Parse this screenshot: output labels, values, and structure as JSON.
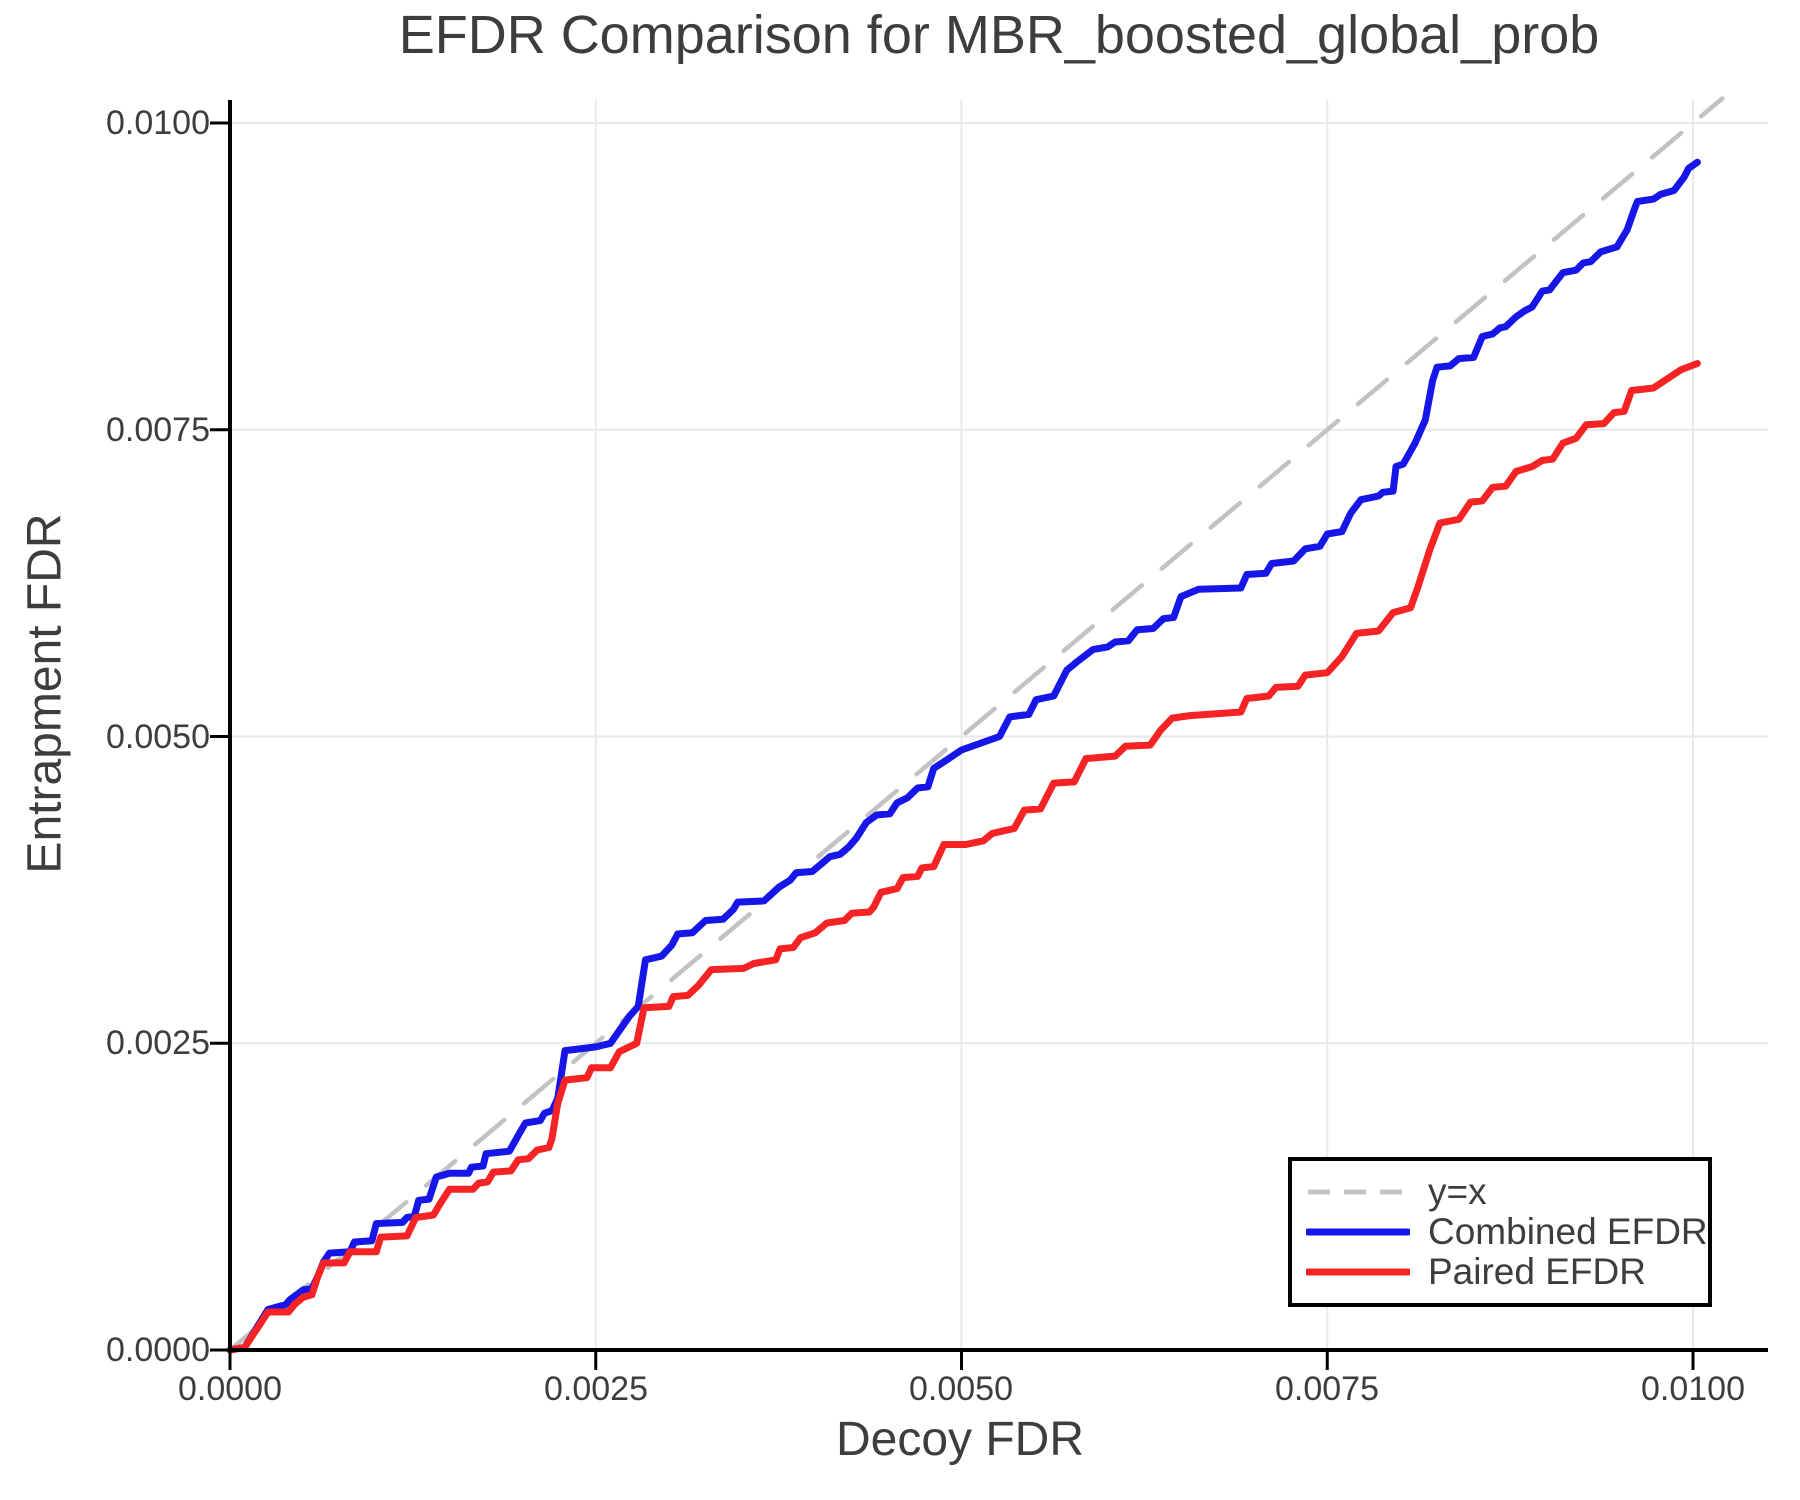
{
  "chart_data": {
    "type": "line",
    "title": "EFDR Comparison for MBR_boosted_global_prob",
    "xlabel": "Decoy FDR",
    "ylabel": "Entrapment FDR",
    "xlim": [
      0.0,
      0.0105
    ],
    "ylim": [
      0.0,
      0.0102
    ],
    "grid": true,
    "legend_position": "bottom-right",
    "xticks": [
      {
        "value": 0.0,
        "label": "0.0000"
      },
      {
        "value": 0.0025,
        "label": "0.0025"
      },
      {
        "value": 0.005,
        "label": "0.0050"
      },
      {
        "value": 0.0075,
        "label": "0.0075"
      },
      {
        "value": 0.01,
        "label": "0.0100"
      }
    ],
    "yticks": [
      {
        "value": 0.0,
        "label": "0.0000"
      },
      {
        "value": 0.0025,
        "label": "0.0025"
      },
      {
        "value": 0.005,
        "label": "0.0050"
      },
      {
        "value": 0.0075,
        "label": "0.0075"
      },
      {
        "value": 0.01,
        "label": "0.0100"
      }
    ],
    "colors": {
      "combined": "#1616e8",
      "paired": "#f52323",
      "identity": "#c2c2c2",
      "grid": "#e9e9e9",
      "text": "#3d3d3d",
      "axis": "#000000"
    },
    "value_scale": 0.001,
    "series": [
      {
        "name": "y=x",
        "style": "dashed",
        "color": "#c2c2c2",
        "width": 4.5,
        "points": [
          [
            0,
            0
          ],
          [
            10.2,
            10.2
          ]
        ]
      },
      {
        "name": "Combined EFDR",
        "style": "solid",
        "color": "#1616e8",
        "width": 7,
        "points": [
          [
            0,
            0
          ],
          [
            0.1,
            0.02
          ],
          [
            0.26,
            0.33
          ],
          [
            0.38,
            0.37
          ],
          [
            0.41,
            0.41
          ],
          [
            0.5,
            0.49
          ],
          [
            0.56,
            0.5
          ],
          [
            0.6,
            0.6
          ],
          [
            0.64,
            0.72
          ],
          [
            0.68,
            0.79
          ],
          [
            0.82,
            0.8
          ],
          [
            0.85,
            0.88
          ],
          [
            0.97,
            0.89
          ],
          [
            1.0,
            1.03
          ],
          [
            1.18,
            1.04
          ],
          [
            1.21,
            1.08
          ],
          [
            1.26,
            1.09
          ],
          [
            1.29,
            1.22
          ],
          [
            1.36,
            1.23
          ],
          [
            1.41,
            1.41
          ],
          [
            1.5,
            1.44
          ],
          [
            1.63,
            1.44
          ],
          [
            1.65,
            1.49
          ],
          [
            1.73,
            1.5
          ],
          [
            1.75,
            1.6
          ],
          [
            1.91,
            1.62
          ],
          [
            1.98,
            1.77
          ],
          [
            2.02,
            1.85
          ],
          [
            2.12,
            1.87
          ],
          [
            2.15,
            1.93
          ],
          [
            2.2,
            1.95
          ],
          [
            2.24,
            2.05
          ],
          [
            2.29,
            2.44
          ],
          [
            2.5,
            2.47
          ],
          [
            2.6,
            2.5
          ],
          [
            2.73,
            2.72
          ],
          [
            2.79,
            2.8
          ],
          [
            2.84,
            3.18
          ],
          [
            2.95,
            3.21
          ],
          [
            3.02,
            3.3
          ],
          [
            3.06,
            3.39
          ],
          [
            3.16,
            3.4
          ],
          [
            3.25,
            3.5
          ],
          [
            3.37,
            3.51
          ],
          [
            3.44,
            3.59
          ],
          [
            3.47,
            3.65
          ],
          [
            3.65,
            3.66
          ],
          [
            3.75,
            3.77
          ],
          [
            3.83,
            3.83
          ],
          [
            3.87,
            3.89
          ],
          [
            3.98,
            3.9
          ],
          [
            4.05,
            3.97
          ],
          [
            4.1,
            4.02
          ],
          [
            4.17,
            4.04
          ],
          [
            4.23,
            4.1
          ],
          [
            4.28,
            4.17
          ],
          [
            4.35,
            4.3
          ],
          [
            4.42,
            4.36
          ],
          [
            4.51,
            4.37
          ],
          [
            4.56,
            4.46
          ],
          [
            4.63,
            4.5
          ],
          [
            4.7,
            4.58
          ],
          [
            4.77,
            4.59
          ],
          [
            4.81,
            4.74
          ],
          [
            4.9,
            4.81
          ],
          [
            5.0,
            4.89
          ],
          [
            5.26,
            5.0
          ],
          [
            5.33,
            5.16
          ],
          [
            5.46,
            5.18
          ],
          [
            5.51,
            5.3
          ],
          [
            5.63,
            5.33
          ],
          [
            5.72,
            5.54
          ],
          [
            5.78,
            5.6
          ],
          [
            5.9,
            5.71
          ],
          [
            6.0,
            5.73
          ],
          [
            6.05,
            5.77
          ],
          [
            6.14,
            5.78
          ],
          [
            6.2,
            5.87
          ],
          [
            6.31,
            5.88
          ],
          [
            6.38,
            5.96
          ],
          [
            6.45,
            5.97
          ],
          [
            6.5,
            6.14
          ],
          [
            6.62,
            6.2
          ],
          [
            6.91,
            6.21
          ],
          [
            6.95,
            6.32
          ],
          [
            7.08,
            6.33
          ],
          [
            7.12,
            6.41
          ],
          [
            7.27,
            6.43
          ],
          [
            7.35,
            6.53
          ],
          [
            7.45,
            6.55
          ],
          [
            7.5,
            6.65
          ],
          [
            7.6,
            6.67
          ],
          [
            7.66,
            6.82
          ],
          [
            7.73,
            6.93
          ],
          [
            7.85,
            6.96
          ],
          [
            7.88,
            6.99
          ],
          [
            7.95,
            7.0
          ],
          [
            7.97,
            7.2
          ],
          [
            8.02,
            7.22
          ],
          [
            8.1,
            7.39
          ],
          [
            8.17,
            7.58
          ],
          [
            8.22,
            7.9
          ],
          [
            8.25,
            8.01
          ],
          [
            8.34,
            8.02
          ],
          [
            8.4,
            8.08
          ],
          [
            8.5,
            8.09
          ],
          [
            8.56,
            8.26
          ],
          [
            8.63,
            8.28
          ],
          [
            8.68,
            8.33
          ],
          [
            8.72,
            8.34
          ],
          [
            8.79,
            8.42
          ],
          [
            8.85,
            8.47
          ],
          [
            8.9,
            8.5
          ],
          [
            8.97,
            8.63
          ],
          [
            9.02,
            8.64
          ],
          [
            9.11,
            8.78
          ],
          [
            9.2,
            8.8
          ],
          [
            9.25,
            8.86
          ],
          [
            9.3,
            8.87
          ],
          [
            9.37,
            8.95
          ],
          [
            9.48,
            8.99
          ],
          [
            9.55,
            9.13
          ],
          [
            9.6,
            9.3
          ],
          [
            9.62,
            9.36
          ],
          [
            9.73,
            9.38
          ],
          [
            9.78,
            9.42
          ],
          [
            9.87,
            9.45
          ],
          [
            9.94,
            9.56
          ],
          [
            9.97,
            9.63
          ],
          [
            10.03,
            9.68
          ]
        ]
      },
      {
        "name": "Paired EFDR",
        "style": "solid",
        "color": "#f52323",
        "width": 7,
        "points": [
          [
            0,
            0
          ],
          [
            0.1,
            0.02
          ],
          [
            0.26,
            0.31
          ],
          [
            0.4,
            0.31
          ],
          [
            0.44,
            0.37
          ],
          [
            0.5,
            0.43
          ],
          [
            0.56,
            0.45
          ],
          [
            0.6,
            0.6
          ],
          [
            0.64,
            0.71
          ],
          [
            0.78,
            0.71
          ],
          [
            0.82,
            0.8
          ],
          [
            1.0,
            0.8
          ],
          [
            1.03,
            0.92
          ],
          [
            1.21,
            0.93
          ],
          [
            1.27,
            1.08
          ],
          [
            1.39,
            1.1
          ],
          [
            1.44,
            1.2
          ],
          [
            1.5,
            1.31
          ],
          [
            1.66,
            1.31
          ],
          [
            1.7,
            1.36
          ],
          [
            1.76,
            1.37
          ],
          [
            1.8,
            1.45
          ],
          [
            1.92,
            1.46
          ],
          [
            1.97,
            1.55
          ],
          [
            2.04,
            1.56
          ],
          [
            2.1,
            1.63
          ],
          [
            2.18,
            1.65
          ],
          [
            2.2,
            1.72
          ],
          [
            2.24,
            2.01
          ],
          [
            2.29,
            2.2
          ],
          [
            2.44,
            2.22
          ],
          [
            2.47,
            2.3
          ],
          [
            2.6,
            2.3
          ],
          [
            2.66,
            2.43
          ],
          [
            2.78,
            2.5
          ],
          [
            2.83,
            2.79
          ],
          [
            3.0,
            2.8
          ],
          [
            3.03,
            2.88
          ],
          [
            3.13,
            2.89
          ],
          [
            3.2,
            2.97
          ],
          [
            3.29,
            3.1
          ],
          [
            3.51,
            3.11
          ],
          [
            3.58,
            3.15
          ],
          [
            3.73,
            3.18
          ],
          [
            3.76,
            3.27
          ],
          [
            3.85,
            3.28
          ],
          [
            3.9,
            3.36
          ],
          [
            4.0,
            3.4
          ],
          [
            4.08,
            3.48
          ],
          [
            4.2,
            3.5
          ],
          [
            4.25,
            3.56
          ],
          [
            4.37,
            3.57
          ],
          [
            4.4,
            3.61
          ],
          [
            4.45,
            3.73
          ],
          [
            4.56,
            3.76
          ],
          [
            4.6,
            3.85
          ],
          [
            4.7,
            3.86
          ],
          [
            4.73,
            3.93
          ],
          [
            4.81,
            3.94
          ],
          [
            4.88,
            4.12
          ],
          [
            5.03,
            4.12
          ],
          [
            5.15,
            4.15
          ],
          [
            5.21,
            4.21
          ],
          [
            5.36,
            4.25
          ],
          [
            5.43,
            4.4
          ],
          [
            5.54,
            4.41
          ],
          [
            5.57,
            4.48
          ],
          [
            5.63,
            4.62
          ],
          [
            5.77,
            4.63
          ],
          [
            5.85,
            4.82
          ],
          [
            6.05,
            4.84
          ],
          [
            6.12,
            4.92
          ],
          [
            6.29,
            4.93
          ],
          [
            6.36,
            5.05
          ],
          [
            6.44,
            5.15
          ],
          [
            6.56,
            5.17
          ],
          [
            6.91,
            5.2
          ],
          [
            6.95,
            5.31
          ],
          [
            7.1,
            5.33
          ],
          [
            7.15,
            5.4
          ],
          [
            7.3,
            5.41
          ],
          [
            7.35,
            5.5
          ],
          [
            7.5,
            5.52
          ],
          [
            7.6,
            5.65
          ],
          [
            7.7,
            5.84
          ],
          [
            7.85,
            5.86
          ],
          [
            7.95,
            6.01
          ],
          [
            8.07,
            6.05
          ],
          [
            8.12,
            6.22
          ],
          [
            8.2,
            6.52
          ],
          [
            8.27,
            6.74
          ],
          [
            8.4,
            6.77
          ],
          [
            8.48,
            6.91
          ],
          [
            8.56,
            6.92
          ],
          [
            8.63,
            7.03
          ],
          [
            8.72,
            7.04
          ],
          [
            8.79,
            7.16
          ],
          [
            8.9,
            7.2
          ],
          [
            8.97,
            7.25
          ],
          [
            9.04,
            7.26
          ],
          [
            9.11,
            7.39
          ],
          [
            9.2,
            7.43
          ],
          [
            9.27,
            7.54
          ],
          [
            9.39,
            7.55
          ],
          [
            9.46,
            7.64
          ],
          [
            9.53,
            7.65
          ],
          [
            9.58,
            7.82
          ],
          [
            9.73,
            7.84
          ],
          [
            9.78,
            7.88
          ],
          [
            9.92,
            7.99
          ],
          [
            10.03,
            8.04
          ]
        ]
      }
    ]
  }
}
